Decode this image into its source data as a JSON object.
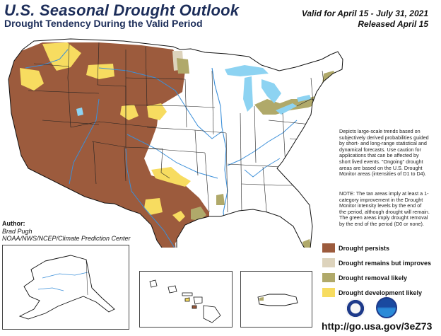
{
  "header": {
    "title": "U.S. Seasonal Drought Outlook",
    "subtitle": "Drought Tendency During the Valid Period",
    "valid": "Valid for April 15 - July 31, 2021",
    "released": "Released April 15"
  },
  "description": "Depicts large-scale trends based on subjectively derived probabilities guided by short- and long-range statistical and dynamical forecasts. Use caution for applications that can be affected by short lived events. \"Ongoing\" drought areas are based on the U.S. Drought Monitor areas (intensities of D1 to D4).",
  "note": "NOTE: The tan areas imply at least a 1-category improvement in the Drought Monitor intensity levels by the end of the period, although drought will remain. The green areas imply drought removal by the end of the period (D0 or none).",
  "author": {
    "label": "Author:",
    "name": "Brad Pugh",
    "org": "NOAA/NWS/NCEP/Climate Prediction Center"
  },
  "legend": [
    {
      "label": "Drought persists",
      "color": "#9c5b3d"
    },
    {
      "label": "Drought remains but improves",
      "color": "#ddd3bc"
    },
    {
      "label": "Drought removal likely",
      "color": "#b0a96a"
    },
    {
      "label": "Drought development likely",
      "color": "#f7dc60"
    }
  ],
  "url": "http://go.usa.gov/3eZ73",
  "colors": {
    "persists": "#9c5b3d",
    "improves": "#ddd3bc",
    "removal": "#b0a96a",
    "development": "#f7dc60",
    "water": "#8dd3f2",
    "river": "#3b8fd9",
    "border": "#222222",
    "title": "#1d2e5a"
  },
  "insets": [
    "alaska",
    "hawaii",
    "puerto-rico"
  ],
  "logos": [
    "noaa-nws-logo",
    "noaa-logo"
  ]
}
